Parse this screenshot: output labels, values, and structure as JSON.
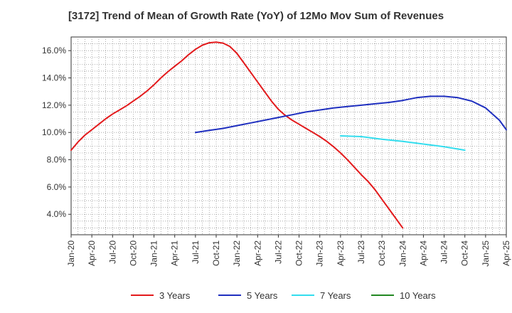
{
  "chart_data": {
    "type": "line",
    "title": "[3172]  Trend of Mean of Growth Rate (YoY) of 12Mo Mov Sum of Revenues",
    "xlabel": "",
    "ylabel": "",
    "ylim": [
      2.5,
      17.0
    ],
    "yticks": [
      4.0,
      6.0,
      8.0,
      10.0,
      12.0,
      14.0,
      16.0
    ],
    "ytick_labels": [
      "4.0%",
      "6.0%",
      "8.0%",
      "10.0%",
      "12.0%",
      "14.0%",
      "16.0%"
    ],
    "xtick_labels": [
      "Jan-20",
      "Apr-20",
      "Jul-20",
      "Oct-20",
      "Jan-21",
      "Apr-21",
      "Jul-21",
      "Oct-21",
      "Jan-22",
      "Apr-22",
      "Jul-22",
      "Oct-22",
      "Jan-23",
      "Apr-23",
      "Jul-23",
      "Oct-23",
      "Jan-24",
      "Apr-24",
      "Jul-24",
      "Oct-24",
      "Jan-25",
      "Apr-25"
    ],
    "grid": true,
    "legend_position": "bottom",
    "series": [
      {
        "name": "3 Years",
        "color": "#e31a1c",
        "x": [
          0,
          1,
          2,
          3,
          4,
          5,
          6,
          7,
          8,
          9,
          10,
          11,
          12,
          13,
          14,
          15,
          16,
          17,
          18,
          19,
          20,
          21,
          22,
          23,
          24,
          25,
          26,
          27,
          28,
          29,
          30,
          31,
          32,
          33,
          34,
          35,
          36,
          37,
          38,
          39,
          40,
          41,
          42,
          43,
          44,
          45,
          46,
          47,
          48,
          49,
          50,
          51,
          52,
          53,
          54,
          55,
          56,
          57,
          58,
          59,
          60
        ],
        "values": [
          8.7,
          9.3,
          9.8,
          10.2,
          10.6,
          11.0,
          11.35,
          11.65,
          11.95,
          12.3,
          12.65,
          13.05,
          13.5,
          14.0,
          14.45,
          14.85,
          15.25,
          15.7,
          16.1,
          16.4,
          16.58,
          16.62,
          16.55,
          16.3,
          15.8,
          15.1,
          14.4,
          13.7,
          13.0,
          12.3,
          11.7,
          11.25,
          10.9,
          10.6,
          10.3,
          10.0,
          9.7,
          9.35,
          8.95,
          8.5,
          8.0,
          7.45,
          6.9,
          6.4,
          5.8,
          5.1,
          4.4,
          3.7,
          3.0,
          null,
          null,
          null,
          null,
          null,
          null,
          null,
          null,
          null,
          null,
          null,
          null
        ]
      },
      {
        "name": "5 Years",
        "color": "#1f2fbf",
        "x": [
          18,
          20,
          22,
          24,
          26,
          28,
          30,
          32,
          34,
          36,
          38,
          40,
          42,
          44,
          46,
          48
        ],
        "values": [
          10.0,
          10.15,
          10.3,
          10.5,
          10.7,
          10.9,
          11.1,
          11.3,
          11.5,
          11.65,
          11.8,
          11.9,
          12.0,
          12.1,
          12.2,
          12.35
        ]
      },
      {
        "name": "7 Years",
        "color": "#33ddee",
        "x": [],
        "values": []
      },
      {
        "name": "10 Years",
        "color": "#228822",
        "x": [],
        "values": []
      }
    ]
  },
  "legend": [
    {
      "label": "3 Years",
      "color": "#e31a1c"
    },
    {
      "label": "5 Years",
      "color": "#1f2fbf"
    },
    {
      "label": "7 Years",
      "color": "#33ddee"
    },
    {
      "label": "10 Years",
      "color": "#228822"
    }
  ]
}
